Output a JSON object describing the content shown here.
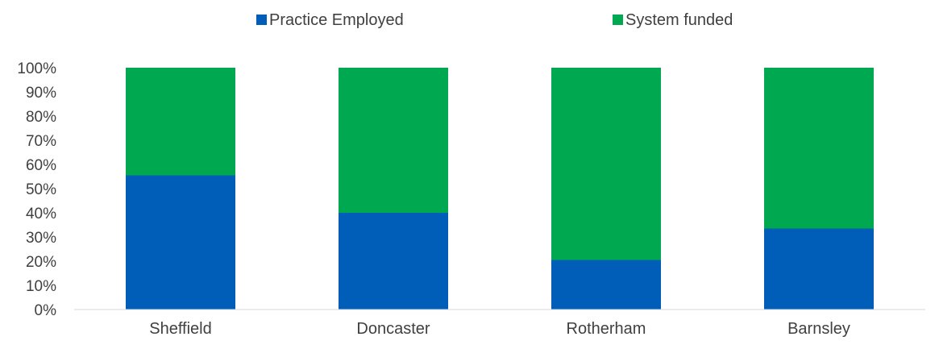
{
  "chart_data": {
    "type": "bar",
    "stacked": true,
    "percent_stacked": true,
    "categories": [
      "Sheffield",
      "Doncaster",
      "Rotherham",
      "Barnsley"
    ],
    "series": [
      {
        "name": "Practice Employed",
        "values": [
          55.5,
          40,
          20.5,
          33.5
        ],
        "color": "#005EB8"
      },
      {
        "name": "System funded",
        "values": [
          44.5,
          60,
          79.5,
          66.5
        ],
        "color": "#00A94F"
      }
    ],
    "y_ticks": [
      "0%",
      "10%",
      "20%",
      "30%",
      "40%",
      "50%",
      "60%",
      "70%",
      "80%",
      "90%",
      "100%"
    ],
    "ylim": [
      0,
      100
    ],
    "grid": false,
    "legend": "top-center"
  }
}
